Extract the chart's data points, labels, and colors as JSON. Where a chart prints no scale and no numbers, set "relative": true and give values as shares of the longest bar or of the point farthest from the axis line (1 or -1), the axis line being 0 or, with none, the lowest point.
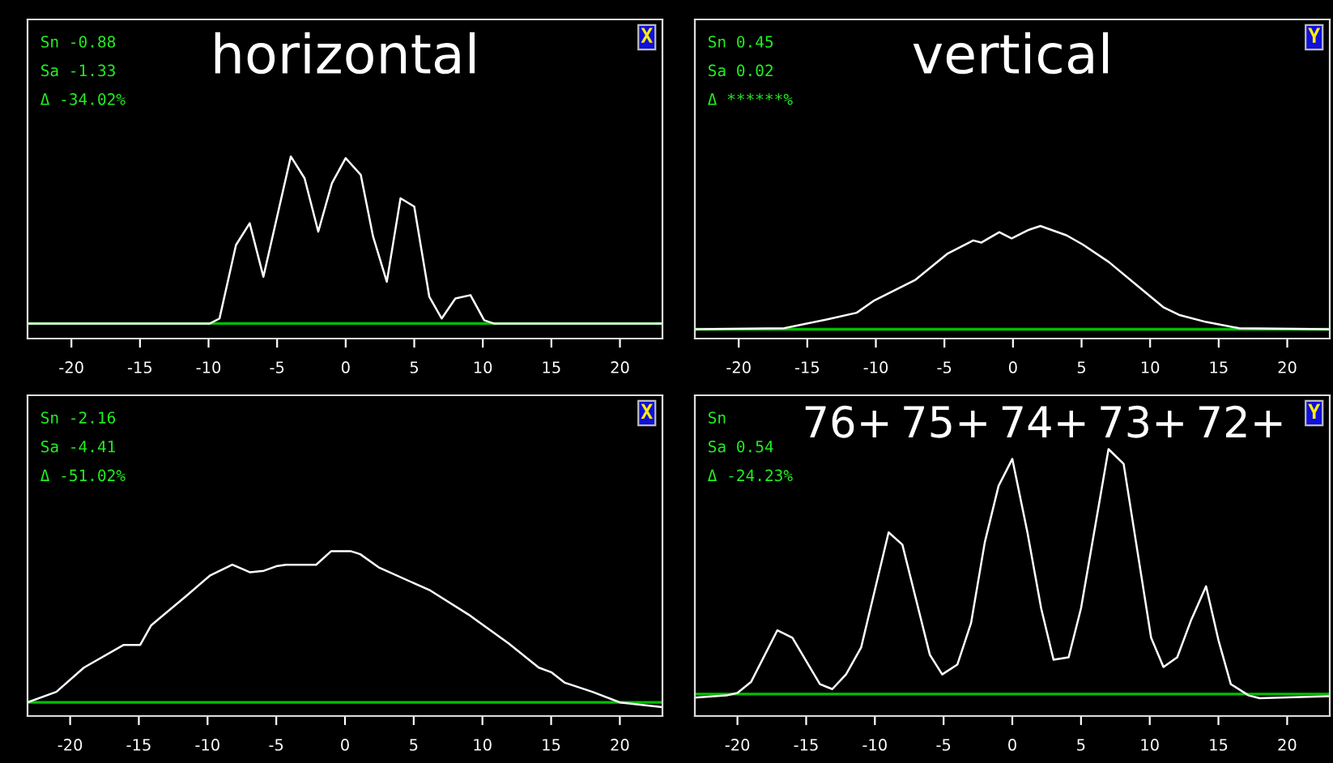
{
  "chart_data": [
    {
      "type": "line",
      "title": "horizontal",
      "relative": true,
      "grid": false,
      "marker": "none",
      "line_style": "solid",
      "xlim": [
        -23.2,
        23.1
      ],
      "xticks": [
        -20,
        -15,
        -10,
        -5,
        0,
        5,
        10,
        15,
        20
      ],
      "x": [
        -23.2,
        -9.9,
        -9.2,
        -8.0,
        -7.0,
        -6.0,
        -4.0,
        -3.0,
        -2.0,
        -1.0,
        0,
        1.1,
        2.0,
        3.0,
        4.0,
        5.0,
        6.1,
        7.0,
        8.0,
        9.1,
        10.1,
        10.8,
        23.1
      ],
      "series": [
        {
          "color": "#ffffff",
          "values": [
            0,
            0,
            0.03,
            0.47,
            0.6,
            0.28,
            1.0,
            0.87,
            0.55,
            0.84,
            0.99,
            0.89,
            0.52,
            0.25,
            0.75,
            0.7,
            0.16,
            0.03,
            0.15,
            0.17,
            0.02,
            0,
            0
          ]
        }
      ],
      "ref_lines": [
        {
          "axis": "y",
          "value": 0,
          "color": "#00c000"
        }
      ],
      "annotations": [
        "Sn -0.88",
        "Sa -1.33",
        "Δ -34.02%",
        "X"
      ]
    },
    {
      "type": "line",
      "title": "vertical",
      "relative": true,
      "grid": false,
      "marker": "none",
      "line_style": "solid",
      "xlim": [
        -23.2,
        23.1
      ],
      "xticks": [
        -20,
        -15,
        -10,
        -5,
        0,
        5,
        10,
        15,
        20
      ],
      "x": [
        -23.2,
        -16.7,
        -13.4,
        -11.4,
        -10.1,
        -7.1,
        -4.8,
        -2.9,
        -2.3,
        -1.0,
        -0.1,
        1.1,
        2.0,
        3.9,
        5.1,
        7.0,
        9.0,
        11.0,
        12.1,
        14.1,
        16.5,
        23.1
      ],
      "series": [
        {
          "color": "#ffffff",
          "values": [
            0,
            0.01,
            0.1,
            0.16,
            0.28,
            0.48,
            0.73,
            0.86,
            0.84,
            0.94,
            0.88,
            0.96,
            1.0,
            0.91,
            0.82,
            0.65,
            0.43,
            0.21,
            0.14,
            0.07,
            0.01,
            0
          ]
        }
      ],
      "ref_lines": [
        {
          "axis": "y",
          "value": 0,
          "color": "#00c000"
        }
      ],
      "annotations": [
        "Sn 0.45",
        "Sa 0.02",
        "Δ ******%",
        "Y"
      ]
    },
    {
      "type": "line",
      "relative": true,
      "grid": false,
      "marker": "none",
      "line_style": "solid",
      "xlim": [
        -23.1,
        23.1
      ],
      "xticks": [
        -20,
        -15,
        -10,
        -5,
        0,
        5,
        10,
        15,
        20
      ],
      "x": [
        -23.1,
        -21.0,
        -19.0,
        -16.1,
        -14.9,
        -14.1,
        -11.6,
        -9.8,
        -8.2,
        -6.9,
        -5.9,
        -5.0,
        -4.3,
        -2.1,
        -1.0,
        0.4,
        1.1,
        2.5,
        6.2,
        9.0,
        11.9,
        14.1,
        15.0,
        16.0,
        18.0,
        20.0,
        23.0
      ],
      "series": [
        {
          "color": "#ffffff",
          "values": [
            0,
            0.07,
            0.23,
            0.38,
            0.38,
            0.51,
            0.7,
            0.84,
            0.91,
            0.86,
            0.87,
            0.9,
            0.91,
            0.91,
            1.0,
            1.0,
            0.98,
            0.89,
            0.74,
            0.58,
            0.39,
            0.23,
            0.2,
            0.13,
            0.07,
            0,
            -0.03
          ]
        }
      ],
      "ref_lines": [
        {
          "axis": "y",
          "value": 0,
          "color": "#00c000"
        }
      ],
      "annotations": [
        "Sn -2.16",
        "Sa -4.41",
        "Δ -51.02%",
        "X"
      ]
    },
    {
      "type": "line",
      "relative": true,
      "grid": false,
      "marker": "none",
      "line_style": "solid",
      "xlim": [
        -23.1,
        23.1
      ],
      "xticks": [
        -20,
        -15,
        -10,
        -5,
        0,
        5,
        10,
        15,
        20
      ],
      "x": [
        -23.1,
        -20.8,
        -20.0,
        -19.0,
        -17.1,
        -16.0,
        -14.0,
        -13.1,
        -12.1,
        -11.0,
        -9.0,
        -8.0,
        -6.0,
        -5.1,
        -4.0,
        -3.0,
        -2.0,
        -1.0,
        0,
        1.1,
        2.1,
        3.0,
        4.1,
        5.0,
        7.0,
        8.1,
        10.1,
        11.0,
        12.0,
        13.0,
        14.1,
        15.0,
        15.9,
        17.2,
        18.0,
        23.0
      ],
      "series": [
        {
          "color": "#ffffff",
          "values": [
            -0.015,
            -0.006,
            0.004,
            0.05,
            0.26,
            0.23,
            0.04,
            0.02,
            0.08,
            0.19,
            0.66,
            0.61,
            0.16,
            0.08,
            0.12,
            0.29,
            0.62,
            0.85,
            0.96,
            0.66,
            0.35,
            0.14,
            0.15,
            0.35,
            1.0,
            0.94,
            0.23,
            0.11,
            0.15,
            0.3,
            0.44,
            0.22,
            0.04,
            -0.006,
            -0.017,
            -0.009
          ]
        }
      ],
      "ref_lines": [
        {
          "axis": "y",
          "value": 0,
          "color": "#00c000"
        }
      ],
      "annotations": [
        "Sn",
        "Sa 0.54",
        "Δ -24.23%",
        "Y",
        "76+",
        "75+",
        "74+",
        "73+",
        "72+"
      ]
    }
  ]
}
